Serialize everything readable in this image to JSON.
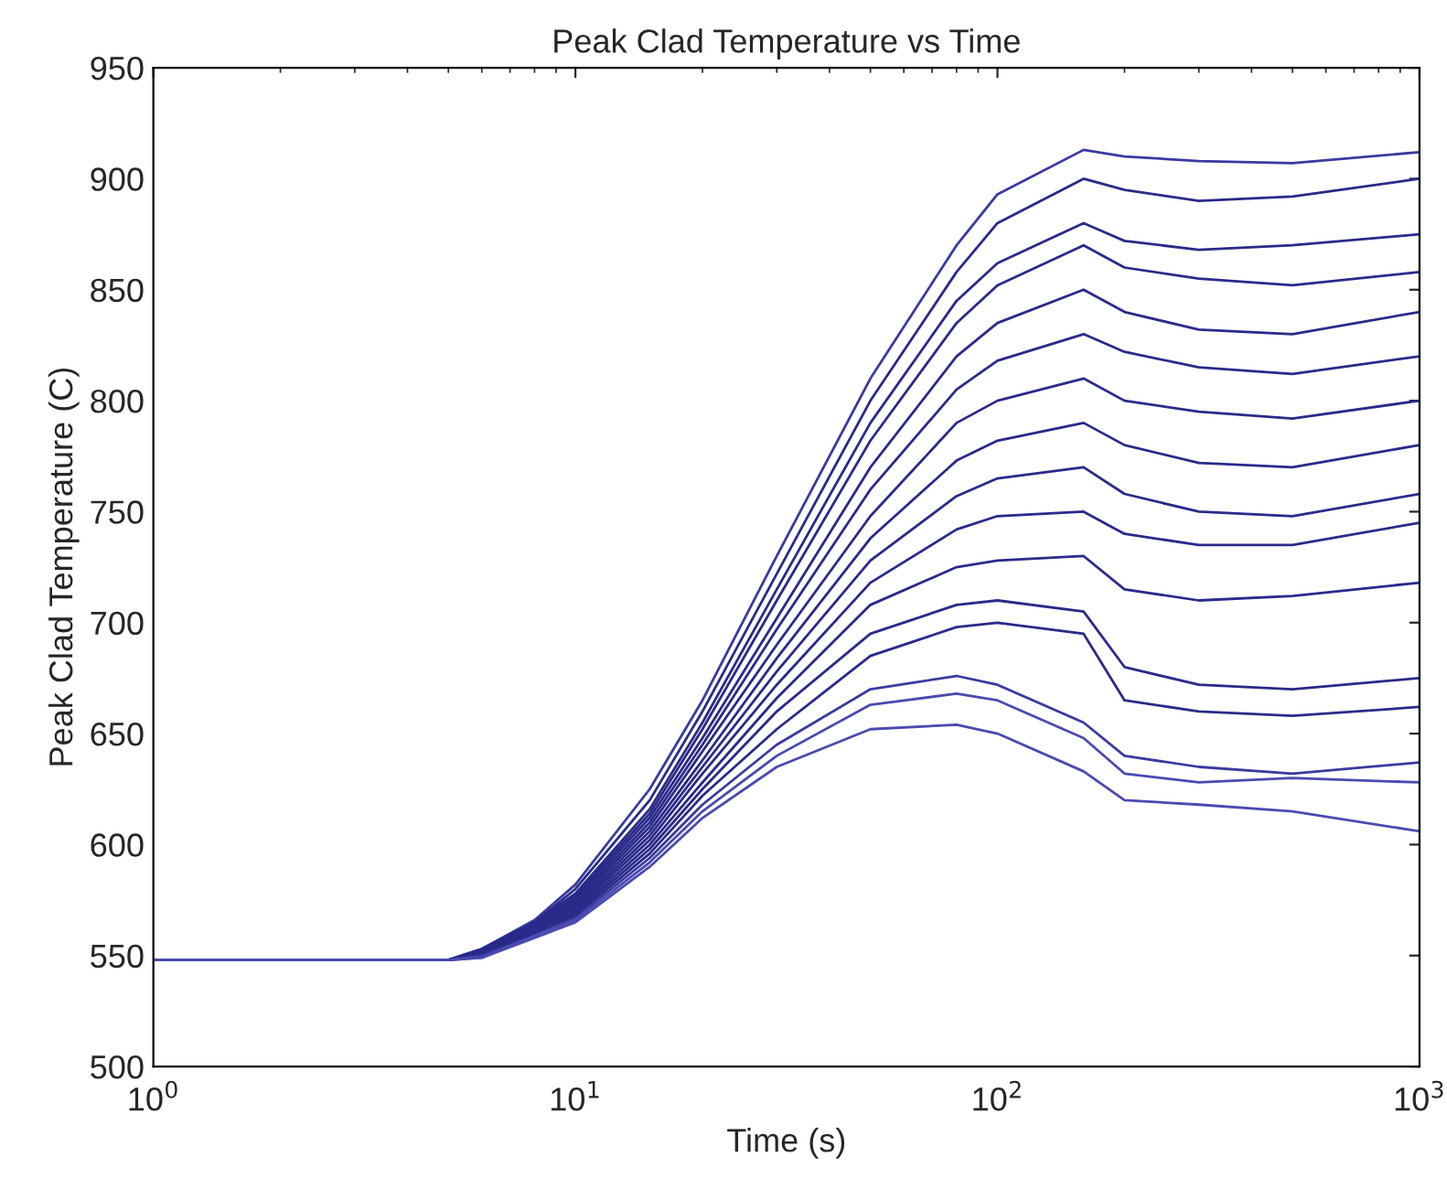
{
  "chart_data": {
    "type": "line",
    "title": "Peak Clad Temperature vs Time",
    "xlabel": "Time (s)",
    "ylabel": "Peak Clad Temperature (C)",
    "log": "x",
    "xlim": [
      1,
      1000
    ],
    "xticks": [
      {
        "value": 1,
        "label": "10$^{0}$"
      },
      {
        "value": 10,
        "label": "10$^{1}$"
      },
      {
        "value": 100,
        "label": "10$^{2}$"
      },
      {
        "value": 1000,
        "label": "10$^{3}$"
      }
    ],
    "ylim": [
      500,
      950
    ],
    "yticks": [
      500,
      550,
      600,
      650,
      700,
      750,
      800,
      850,
      900,
      950
    ],
    "grid": false,
    "marker": "none",
    "line_style": "solid",
    "x": [
      1,
      5,
      6,
      8,
      10,
      15,
      20,
      30,
      50,
      80,
      100,
      160,
      200,
      300,
      500,
      1000
    ],
    "series": [
      {
        "color": "#3a3aa0",
        "values": [
          548,
          548,
          553,
          566,
          582,
          625,
          665,
          730,
          810,
          870,
          893,
          913,
          910,
          908,
          907,
          912
        ]
      },
      {
        "color": "#2a2a8a",
        "values": [
          548,
          548,
          553,
          565,
          580,
          620,
          660,
          722,
          800,
          858,
          880,
          900,
          895,
          890,
          892,
          900
        ]
      },
      {
        "color": "#2a2a8a",
        "values": [
          548,
          548,
          552,
          565,
          578,
          616,
          655,
          715,
          790,
          845,
          862,
          880,
          872,
          868,
          870,
          875
        ]
      },
      {
        "color": "#2a2a8a",
        "values": [
          548,
          548,
          552,
          564,
          577,
          614,
          652,
          710,
          782,
          835,
          852,
          870,
          860,
          855,
          852,
          858
        ]
      },
      {
        "color": "#2a2a8a",
        "values": [
          548,
          548,
          552,
          564,
          576,
          612,
          648,
          702,
          770,
          820,
          835,
          850,
          840,
          832,
          830,
          840
        ]
      },
      {
        "color": "#2a2a8a",
        "values": [
          548,
          548,
          552,
          563,
          575,
          610,
          645,
          697,
          760,
          805,
          818,
          830,
          822,
          815,
          812,
          820
        ]
      },
      {
        "color": "#2a2a8a",
        "values": [
          548,
          548,
          551,
          563,
          574,
          608,
          642,
          690,
          748,
          790,
          800,
          810,
          800,
          795,
          792,
          800
        ]
      },
      {
        "color": "#2a2a8a",
        "values": [
          548,
          548,
          551,
          562,
          573,
          606,
          638,
          684,
          738,
          773,
          782,
          790,
          780,
          772,
          770,
          780
        ]
      },
      {
        "color": "#2a2a8a",
        "values": [
          548,
          548,
          551,
          562,
          572,
          604,
          635,
          678,
          728,
          757,
          765,
          770,
          758,
          750,
          748,
          758
        ]
      },
      {
        "color": "#2a2a8a",
        "values": [
          548,
          548,
          551,
          561,
          571,
          602,
          632,
          672,
          718,
          742,
          748,
          750,
          740,
          735,
          735,
          745
        ]
      },
      {
        "color": "#2a2a8a",
        "values": [
          548,
          548,
          550,
          561,
          570,
          600,
          628,
          666,
          708,
          725,
          728,
          730,
          715,
          710,
          712,
          718
        ]
      },
      {
        "color": "#2a2a8a",
        "values": [
          548,
          548,
          550,
          560,
          569,
          598,
          625,
          660,
          695,
          708,
          710,
          705,
          680,
          672,
          670,
          675
        ]
      },
      {
        "color": "#2a2a8a",
        "values": [
          548,
          548,
          550,
          560,
          568,
          596,
          622,
          652,
          685,
          698,
          700,
          695,
          665,
          660,
          658,
          662
        ]
      },
      {
        "color": "#3a3aa0",
        "values": [
          548,
          548,
          550,
          559,
          567,
          594,
          618,
          645,
          670,
          676,
          672,
          655,
          640,
          635,
          632,
          637
        ]
      },
      {
        "color": "#4a4ab0",
        "values": [
          548,
          548,
          549,
          559,
          566,
          592,
          615,
          640,
          663,
          668,
          665,
          648,
          632,
          628,
          630,
          628
        ]
      },
      {
        "color": "#4a4ab0",
        "values": [
          548,
          548,
          549,
          558,
          565,
          590,
          612,
          635,
          652,
          654,
          650,
          633,
          620,
          618,
          615,
          606
        ]
      }
    ]
  }
}
